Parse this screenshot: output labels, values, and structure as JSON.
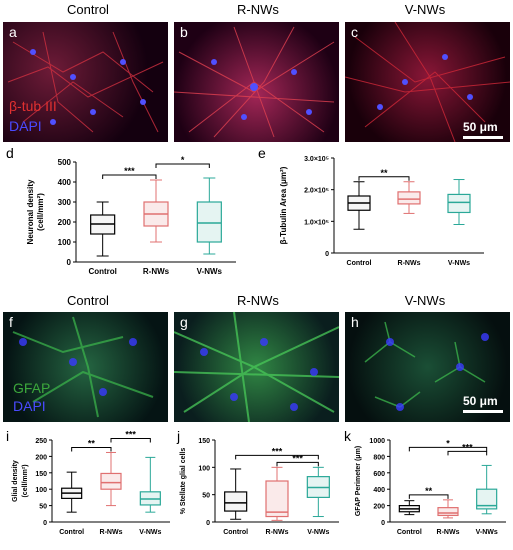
{
  "columns": [
    "Control",
    "R-NWs",
    "V-NWs"
  ],
  "panels": [
    "a",
    "b",
    "c",
    "d",
    "e",
    "f",
    "g",
    "h",
    "i",
    "j",
    "k"
  ],
  "stains_top": {
    "beta_tub": "β-tub III",
    "dapi": "DAPI"
  },
  "stains_bottom": {
    "gfap": "GFAP",
    "dapi": "DAPI"
  },
  "scale_bar_label": "50 μm",
  "colors": {
    "control": "#000000",
    "r_nws": "#e07070",
    "v_nws": "#2aa898",
    "beta_tub": "#e03030",
    "dapi": "#3a3aff",
    "gfap": "#3ca83c"
  },
  "chart_data": [
    {
      "id": "d",
      "type": "boxplot",
      "ylabel": "Neuronal density\n(cell/mm²)",
      "categories": [
        "Control",
        "R-NWs",
        "V-NWs"
      ],
      "ylim": [
        0,
        500
      ],
      "yticks": [
        "0",
        "100",
        "200",
        "300",
        "400",
        "500"
      ],
      "ytick_values": [
        0,
        100,
        200,
        300,
        400,
        500
      ],
      "boxes": [
        {
          "min": 30,
          "q1": 140,
          "median": 190,
          "q3": 235,
          "max": 300
        },
        {
          "min": 100,
          "q1": 180,
          "median": 240,
          "q3": 300,
          "max": 410
        },
        {
          "min": 40,
          "q1": 100,
          "median": 195,
          "q3": 300,
          "max": 420
        }
      ],
      "significance": [
        {
          "from": 0,
          "to": 1,
          "label": "***"
        },
        {
          "from": 1,
          "to": 2,
          "label": "*"
        }
      ]
    },
    {
      "id": "e",
      "type": "boxplot",
      "ylabel": "β-Tubulin Area (μm²)",
      "categories": [
        "Control",
        "R-NWs",
        "V-NWs"
      ],
      "ylim": [
        0,
        300000
      ],
      "yticks": [
        "0",
        "1.0×10⁵",
        "2.0×10⁵",
        "3.0×10⁵"
      ],
      "ytick_values": [
        0,
        100000,
        200000,
        300000
      ],
      "boxes": [
        {
          "min": 75000,
          "q1": 135000,
          "median": 158000,
          "q3": 180000,
          "max": 225000
        },
        {
          "min": 125000,
          "q1": 155000,
          "median": 170000,
          "q3": 193000,
          "max": 225000
        },
        {
          "min": 90000,
          "q1": 128000,
          "median": 160000,
          "q3": 185000,
          "max": 232000
        }
      ],
      "significance": [
        {
          "from": 0,
          "to": 1,
          "label": "**"
        }
      ]
    },
    {
      "id": "i",
      "type": "boxplot",
      "ylabel": "Glial density\n(cell/mm²)",
      "categories": [
        "Control",
        "R-NWs",
        "V-NWs"
      ],
      "ylim": [
        0,
        250
      ],
      "yticks": [
        "0",
        "50",
        "100",
        "150",
        "200",
        "250"
      ],
      "ytick_values": [
        0,
        50,
        100,
        150,
        200,
        250
      ],
      "boxes": [
        {
          "min": 30,
          "q1": 72,
          "median": 88,
          "q3": 103,
          "max": 152
        },
        {
          "min": 50,
          "q1": 100,
          "median": 120,
          "q3": 148,
          "max": 212
        },
        {
          "min": 30,
          "q1": 52,
          "median": 70,
          "q3": 92,
          "max": 197
        }
      ],
      "significance": [
        {
          "from": 0,
          "to": 1,
          "label": "**"
        },
        {
          "from": 1,
          "to": 2,
          "label": "***"
        }
      ]
    },
    {
      "id": "j",
      "type": "boxplot",
      "ylabel": "% Stellate glial cells",
      "categories": [
        "Control",
        "R-NWs",
        "V-NWs"
      ],
      "ylim": [
        0,
        150
      ],
      "yticks": [
        "0",
        "50",
        "100",
        "150"
      ],
      "ytick_values": [
        0,
        50,
        100,
        150
      ],
      "boxes": [
        {
          "min": 5,
          "q1": 20,
          "median": 35,
          "q3": 55,
          "max": 97
        },
        {
          "min": 3,
          "q1": 10,
          "median": 18,
          "q3": 75,
          "max": 100
        },
        {
          "min": 10,
          "q1": 45,
          "median": 63,
          "q3": 83,
          "max": 100
        }
      ],
      "significance": [
        {
          "from": 0,
          "to": 2,
          "label": "***"
        },
        {
          "from": 1,
          "to": 2,
          "label": "***"
        }
      ]
    },
    {
      "id": "k",
      "type": "boxplot",
      "ylabel": "GFAP Perimeter (μm)",
      "categories": [
        "Control",
        "R-NWs",
        "V-NWs"
      ],
      "ylim": [
        0,
        1000
      ],
      "yticks": [
        "0",
        "200",
        "400",
        "600",
        "800",
        "1000"
      ],
      "ytick_values": [
        0,
        200,
        400,
        600,
        800,
        1000
      ],
      "boxes": [
        {
          "min": 90,
          "q1": 125,
          "median": 160,
          "q3": 200,
          "max": 260
        },
        {
          "min": 50,
          "q1": 80,
          "median": 110,
          "q3": 175,
          "max": 270
        },
        {
          "min": 100,
          "q1": 160,
          "median": 200,
          "q3": 400,
          "max": 690
        }
      ],
      "significance": [
        {
          "from": 0,
          "to": 1,
          "label": "**"
        },
        {
          "from": 1,
          "to": 2,
          "label": "***"
        },
        {
          "from": 0,
          "to": 2,
          "label": "*"
        }
      ]
    }
  ]
}
